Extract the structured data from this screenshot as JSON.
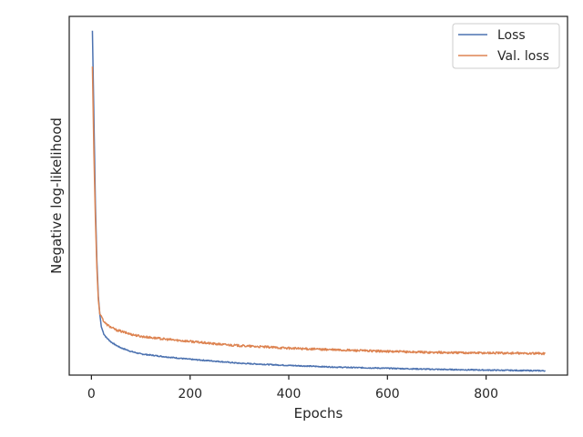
{
  "chart_data": {
    "type": "line",
    "title": "",
    "xlabel": "Epochs",
    "ylabel": "Negative log-likelihood",
    "xlim": [
      -45,
      965
    ],
    "ylim": [
      0.0,
      1.0
    ],
    "x_ticks": [
      0,
      200,
      400,
      600,
      800
    ],
    "y_ticks_visible": false,
    "grid": false,
    "legend_position": "top-right",
    "series": [
      {
        "name": "Loss",
        "color": "#4c72b0",
        "noise": 0.0015,
        "x": [
          2,
          5,
          8,
          11,
          14,
          17,
          20,
          25,
          30,
          40,
          50,
          60,
          80,
          100,
          150,
          200,
          250,
          300,
          400,
          500,
          600,
          700,
          800,
          920
        ],
        "y": [
          0.96,
          0.72,
          0.48,
          0.32,
          0.22,
          0.17,
          0.135,
          0.115,
          0.105,
          0.092,
          0.083,
          0.076,
          0.066,
          0.059,
          0.051,
          0.044,
          0.039,
          0.033,
          0.027,
          0.022,
          0.019,
          0.016,
          0.014,
          0.012
        ]
      },
      {
        "name": "Val. loss",
        "color": "#dd8452",
        "noise": 0.003,
        "x": [
          2,
          5,
          8,
          11,
          14,
          17,
          20,
          25,
          30,
          40,
          50,
          60,
          80,
          100,
          150,
          200,
          250,
          300,
          400,
          500,
          600,
          700,
          800,
          920
        ],
        "y": [
          0.86,
          0.62,
          0.44,
          0.3,
          0.21,
          0.17,
          0.165,
          0.15,
          0.142,
          0.133,
          0.126,
          0.122,
          0.114,
          0.108,
          0.1,
          0.094,
          0.087,
          0.082,
          0.075,
          0.07,
          0.066,
          0.063,
          0.062,
          0.06
        ]
      }
    ]
  }
}
